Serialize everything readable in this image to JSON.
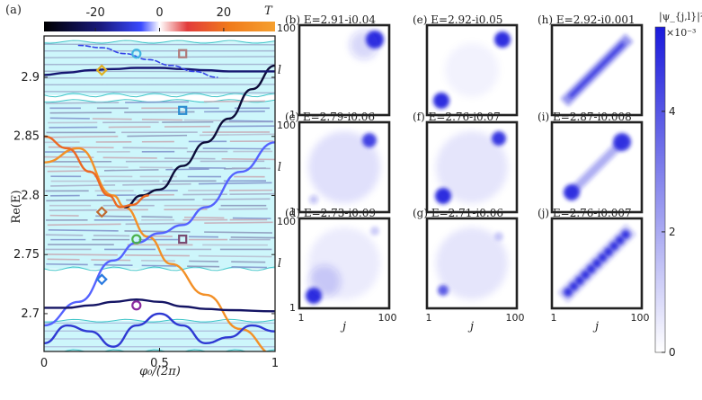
{
  "chart_data": [
    {
      "type": "line",
      "panel": "(a)",
      "xlabel": "φ₀/(2π)",
      "ylabel": "Re(E)",
      "xlim": [
        0,
        1
      ],
      "ylim": [
        2.668,
        2.935
      ],
      "xticks": [
        "0",
        "0.5",
        "1"
      ],
      "yticks": [
        "2.7",
        "2.75",
        "2.8",
        "2.85",
        "2.9"
      ],
      "ytick_values": [
        2.7,
        2.75,
        2.8,
        2.85,
        2.9
      ],
      "colorbar": {
        "label": "T",
        "ticks": [
          "-20",
          "0",
          "20"
        ],
        "tick_values": [
          -20,
          0,
          20
        ],
        "range": [
          -36,
          36
        ]
      },
      "bands": [
        {
          "name": "upper band",
          "ylim": [
            2.885,
            2.93
          ]
        },
        {
          "name": "main band",
          "ylim": [
            2.738,
            2.88
          ]
        },
        {
          "name": "lower band",
          "ylim": [
            2.668,
            2.694
          ]
        }
      ],
      "series": [
        {
          "name": "orange mode",
          "T": 30,
          "x": [
            0,
            0.15,
            0.3,
            0.35,
            0.45,
            0.55,
            0.7,
            0.85,
            1.0
          ],
          "y": [
            2.828,
            2.84,
            2.8,
            2.79,
            2.765,
            2.742,
            2.716,
            2.687,
            2.665
          ]
        },
        {
          "name": "crossing mode 1",
          "T": -5,
          "x": [
            0,
            0.15,
            0.3,
            0.4,
            0.5,
            0.6,
            0.7,
            0.85,
            1.0
          ],
          "y": [
            2.69,
            2.71,
            2.745,
            2.76,
            2.768,
            2.775,
            2.79,
            2.82,
            2.845
          ]
        },
        {
          "name": "blue mode",
          "T": -28,
          "x": [
            0.35,
            0.42,
            0.5,
            0.6,
            0.7,
            0.8,
            0.9,
            1.0
          ],
          "y": [
            2.79,
            2.8,
            2.805,
            2.825,
            2.845,
            2.865,
            2.89,
            2.91
          ]
        },
        {
          "name": "red mode",
          "T": 18,
          "x": [
            0,
            0.1,
            0.2,
            0.28,
            0.33,
            0.38,
            0.45
          ],
          "y": [
            2.85,
            2.84,
            2.82,
            2.8,
            2.79,
            2.792,
            2.8
          ]
        },
        {
          "name": "lower edge mode",
          "T": -22,
          "x": [
            0,
            0.1,
            0.2,
            0.3,
            0.4,
            0.5,
            0.6,
            0.7,
            0.8,
            1.0
          ],
          "y": [
            2.705,
            2.705,
            2.707,
            2.71,
            2.712,
            2.71,
            2.706,
            2.704,
            2.703,
            2.702
          ]
        },
        {
          "name": "upper edge mode",
          "T": -20,
          "x": [
            0,
            0.1,
            0.2,
            0.3,
            0.4,
            0.5,
            0.6,
            0.7,
            0.8,
            1.0
          ],
          "y": [
            2.902,
            2.904,
            2.906,
            2.907,
            2.908,
            2.908,
            2.907,
            2.906,
            2.905,
            2.905
          ]
        },
        {
          "name": "lower band mode",
          "T": -10,
          "x": [
            0,
            0.1,
            0.2,
            0.3,
            0.4,
            0.5,
            0.6,
            0.7,
            0.8,
            0.9,
            1.0
          ],
          "y": [
            2.675,
            2.69,
            2.685,
            2.672,
            2.69,
            2.7,
            2.69,
            2.675,
            2.68,
            2.69,
            2.685
          ]
        },
        {
          "name": "upper band dashed",
          "T": -8,
          "x": [
            0.15,
            0.25,
            0.35,
            0.45,
            0.55,
            0.65,
            0.75
          ],
          "y": [
            2.927,
            2.925,
            2.92,
            2.915,
            2.91,
            2.905,
            2.9
          ]
        }
      ],
      "markers": [
        {
          "id": "b",
          "shape": "circle",
          "x": 0.4,
          "y": 2.92
        },
        {
          "id": "e",
          "shape": "square",
          "x": 0.6,
          "y": 2.92
        },
        {
          "id": "h",
          "shape": "diamond",
          "x": 0.25,
          "y": 2.906
        },
        {
          "id": "c",
          "shape": "square",
          "x": 0.6,
          "y": 2.872
        },
        {
          "id": "f",
          "shape": "diamond",
          "x": 0.25,
          "y": 2.786
        },
        {
          "id": "i",
          "shape": "circle",
          "x": 0.4,
          "y": 2.763
        },
        {
          "id": "d",
          "shape": "square",
          "x": 0.6,
          "y": 2.763
        },
        {
          "id": "g",
          "shape": "diamond",
          "x": 0.25,
          "y": 2.729
        },
        {
          "id": "j",
          "shape": "circle",
          "x": 0.4,
          "y": 2.707
        }
      ]
    },
    {
      "type": "heatmap",
      "description": "|ψ_{j,l}|² spatial profiles on 100×100 lattice",
      "xlabel": "j",
      "ylabel": "l",
      "axis_ticks": [
        "1",
        "100"
      ],
      "colorbar": {
        "label": "|ψ_{j,l}|²",
        "scale": "×10⁻³",
        "ticks": [
          "0",
          "2",
          "4"
        ],
        "tick_values": [
          0,
          2,
          4
        ],
        "range": [
          0,
          5.4
        ]
      },
      "panels": [
        {
          "id": "b",
          "label": "(b) E=2.91-i0.04",
          "pattern": "corner-top-right"
        },
        {
          "id": "e",
          "label": "(e) E=2.92-i0.05",
          "pattern": "two-corners"
        },
        {
          "id": "h",
          "label": "(h) E=2.92-i0.001",
          "pattern": "diagonal"
        },
        {
          "id": "c",
          "label": "(c) E=2.79-i0.06",
          "pattern": "diffuse-top-right"
        },
        {
          "id": "f",
          "label": "(f) E=2.76-i0.07",
          "pattern": "diffuse-two-corners"
        },
        {
          "id": "i",
          "label": "(i) E=2.87-i0.008",
          "pattern": "diagonal-ends"
        },
        {
          "id": "d",
          "label": "(d) E=2.73-i0.09",
          "pattern": "diffuse-bottom-left"
        },
        {
          "id": "g",
          "label": "(g) E=2.71-i0.06",
          "pattern": "diffuse-mid"
        },
        {
          "id": "j",
          "label": "(j) E=2.76-i0.007",
          "pattern": "checker-diagonal"
        }
      ]
    }
  ]
}
